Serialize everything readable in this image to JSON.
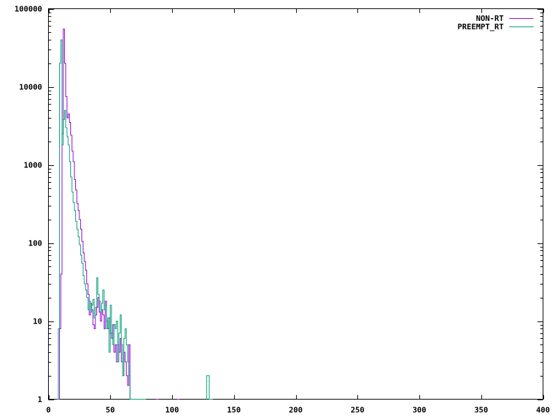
{
  "chart_data": {
    "type": "line",
    "title": "",
    "xlabel": "",
    "ylabel": "",
    "xlim": [
      0,
      400
    ],
    "ylim": [
      1,
      100000
    ],
    "yscale": "log",
    "grid": false,
    "legend_position": "top-right",
    "x_ticks": [
      "0",
      "50",
      "100",
      "150",
      "200",
      "250",
      "300",
      "350",
      "400"
    ],
    "y_ticks": [
      "1",
      "10",
      "100",
      "1000",
      "10000",
      "100000"
    ],
    "series": [
      {
        "name": "NON-RT",
        "color": "#9400d3",
        "points": [
          [
            8,
            1
          ],
          [
            9,
            8
          ],
          [
            10,
            40
          ],
          [
            11,
            2500
          ],
          [
            12,
            55000
          ],
          [
            13,
            20000
          ],
          [
            14,
            7500
          ],
          [
            15,
            4000
          ],
          [
            16,
            4500
          ],
          [
            17,
            3500
          ],
          [
            18,
            2400
          ],
          [
            19,
            1500
          ],
          [
            20,
            1100
          ],
          [
            21,
            650
          ],
          [
            22,
            480
          ],
          [
            23,
            320
          ],
          [
            24,
            260
          ],
          [
            25,
            200
          ],
          [
            26,
            150
          ],
          [
            27,
            105
          ],
          [
            28,
            75
          ],
          [
            29,
            58
          ],
          [
            30,
            45
          ],
          [
            31,
            30
          ],
          [
            32,
            22
          ],
          [
            33,
            12
          ],
          [
            34,
            17
          ],
          [
            35,
            14
          ],
          [
            36,
            9
          ],
          [
            37,
            8
          ],
          [
            38,
            12
          ],
          [
            39,
            15
          ],
          [
            40,
            20
          ],
          [
            41,
            13
          ],
          [
            42,
            10
          ],
          [
            43,
            14
          ],
          [
            44,
            12
          ],
          [
            45,
            8
          ],
          [
            46,
            18
          ],
          [
            47,
            10
          ],
          [
            48,
            8
          ],
          [
            49,
            11
          ],
          [
            50,
            7
          ],
          [
            51,
            6
          ],
          [
            52,
            9
          ],
          [
            53,
            4
          ],
          [
            54,
            5
          ],
          [
            55,
            3
          ],
          [
            56,
            5
          ],
          [
            57,
            4
          ],
          [
            58,
            6
          ],
          [
            59,
            3
          ],
          [
            60,
            2
          ],
          [
            61,
            4
          ],
          [
            62,
            3
          ],
          [
            63,
            2
          ],
          [
            64,
            1.5
          ],
          [
            65,
            5
          ],
          [
            66,
            1
          ],
          [
            70,
            1
          ],
          [
            71,
            1
          ],
          [
            72,
            1
          ],
          [
            73,
            1
          ],
          [
            74,
            1
          ],
          [
            75,
            1
          ],
          [
            76,
            1
          ],
          [
            77,
            1
          ],
          [
            87,
            1
          ],
          [
            88,
            1
          ],
          [
            104,
            1
          ],
          [
            105,
            1
          ]
        ]
      },
      {
        "name": "PREEMPT_RT",
        "color": "#009e73",
        "points": [
          [
            7,
            1
          ],
          [
            8,
            8
          ],
          [
            9,
            20000
          ],
          [
            10,
            40000
          ],
          [
            11,
            1800
          ],
          [
            12,
            3800
          ],
          [
            13,
            5000
          ],
          [
            14,
            3000
          ],
          [
            15,
            2300
          ],
          [
            16,
            1800
          ],
          [
            17,
            1100
          ],
          [
            18,
            700
          ],
          [
            19,
            450
          ],
          [
            20,
            330
          ],
          [
            21,
            260
          ],
          [
            22,
            190
          ],
          [
            23,
            150
          ],
          [
            24,
            120
          ],
          [
            25,
            95
          ],
          [
            26,
            70
          ],
          [
            27,
            55
          ],
          [
            28,
            38
          ],
          [
            29,
            30
          ],
          [
            30,
            25
          ],
          [
            31,
            20
          ],
          [
            32,
            14
          ],
          [
            33,
            18
          ],
          [
            34,
            13
          ],
          [
            35,
            16
          ],
          [
            36,
            19
          ],
          [
            37,
            11
          ],
          [
            38,
            15
          ],
          [
            39,
            36
          ],
          [
            40,
            22
          ],
          [
            41,
            18
          ],
          [
            42,
            13
          ],
          [
            43,
            17
          ],
          [
            44,
            25
          ],
          [
            45,
            14
          ],
          [
            46,
            16
          ],
          [
            47,
            8
          ],
          [
            48,
            11
          ],
          [
            49,
            4
          ],
          [
            50,
            16
          ],
          [
            51,
            7
          ],
          [
            52,
            5
          ],
          [
            53,
            9
          ],
          [
            54,
            8
          ],
          [
            55,
            10
          ],
          [
            56,
            3
          ],
          [
            57,
            7
          ],
          [
            58,
            12
          ],
          [
            59,
            5
          ],
          [
            60,
            2
          ],
          [
            61,
            6
          ],
          [
            62,
            8
          ],
          [
            63,
            5
          ],
          [
            64,
            3
          ],
          [
            65,
            2
          ],
          [
            66,
            1
          ],
          [
            67,
            1
          ],
          [
            68,
            1
          ],
          [
            69,
            1
          ],
          [
            70,
            1
          ],
          [
            71,
            1
          ],
          [
            72,
            1
          ],
          [
            73,
            1
          ],
          [
            74,
            1
          ],
          [
            75,
            1
          ],
          [
            76,
            1
          ],
          [
            77,
            1
          ],
          [
            78,
            1
          ],
          [
            128,
            2
          ],
          [
            129,
            2
          ],
          [
            130,
            1
          ],
          [
            131,
            1
          ],
          [
            132,
            1
          ]
        ]
      }
    ]
  }
}
